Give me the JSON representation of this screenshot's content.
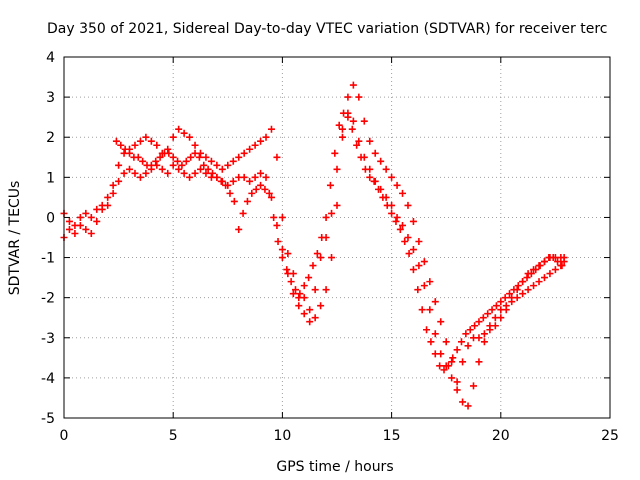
{
  "chart_data": {
    "type": "scatter",
    "title": "Day 350 of 2021, Sidereal Day-to-day VTEC variation (SDTVAR) for receiver terc",
    "xlabel": "GPS time / hours",
    "ylabel": "SDTVAR / TECUs",
    "xlim": [
      0,
      25
    ],
    "ylim": [
      -5,
      4
    ],
    "xticks": [
      0,
      5,
      10,
      15,
      20,
      25
    ],
    "yticks": [
      -5,
      -4,
      -3,
      -2,
      -1,
      0,
      1,
      2,
      3,
      4
    ],
    "grid": true,
    "marker": "plus",
    "color": "#ff0000",
    "series": [
      {
        "x": [
          0.0,
          0.25,
          0.5,
          0.75,
          1.0,
          1.25,
          1.5,
          1.75,
          2.0,
          2.25,
          2.5,
          2.75,
          3.0,
          3.25,
          3.5,
          3.75,
          4.0,
          4.25,
          4.5,
          4.75,
          5.0,
          5.25,
          5.5,
          5.75,
          6.0,
          6.25,
          6.5,
          6.75,
          7.0,
          7.25,
          7.5,
          7.75,
          8.0,
          8.25,
          8.5,
          8.75,
          9.0,
          9.25,
          9.5,
          9.75,
          10.0,
          10.25,
          10.5,
          10.75,
          11.0,
          11.25,
          11.5,
          11.75,
          12.0,
          12.25,
          12.5,
          12.75,
          13.0,
          13.25,
          13.5,
          13.75,
          14.0,
          14.25,
          14.5,
          14.75,
          15.0,
          15.25,
          15.5,
          15.75,
          16.0,
          16.25,
          16.5,
          16.75,
          17.0,
          17.25,
          17.5,
          17.75,
          18.0,
          18.25,
          18.5,
          18.75,
          19.0,
          19.25,
          19.5,
          19.75,
          20.0,
          20.25,
          20.5,
          20.75,
          21.0,
          21.25,
          21.5,
          21.75,
          22.0,
          22.25,
          22.5,
          22.75,
          22.9
        ],
        "y": [
          -0.5,
          -0.3,
          -0.4,
          -0.2,
          -0.3,
          -0.4,
          -0.1,
          0.2,
          0.3,
          0.6,
          0.9,
          1.1,
          1.2,
          1.1,
          1.0,
          1.1,
          1.2,
          1.3,
          1.2,
          1.1,
          1.3,
          1.2,
          1.1,
          1.0,
          1.1,
          1.2,
          1.1,
          1.0,
          1.0,
          0.9,
          0.8,
          0.9,
          1.0,
          1.0,
          0.9,
          1.0,
          1.1,
          1.0,
          0.5,
          -0.2,
          -0.8,
          -1.4,
          -1.9,
          -2.2,
          -2.0,
          -2.3,
          -1.8,
          -1.0,
          -0.5,
          0.1,
          1.2,
          2.2,
          2.6,
          2.4,
          1.9,
          1.5,
          1.2,
          0.9,
          0.7,
          0.5,
          0.3,
          0.0,
          -0.2,
          -0.5,
          -0.8,
          -1.2,
          -1.7,
          -2.3,
          -2.9,
          -3.4,
          -3.7,
          -4.0,
          -4.1,
          -3.6,
          -3.2,
          -3.0,
          -3.0,
          -2.9,
          -2.8,
          -2.7,
          -2.5,
          -2.3,
          -2.0,
          -1.8,
          -1.6,
          -1.4,
          -1.3,
          -1.2,
          -1.1,
          -1.0,
          -1.0,
          -1.0,
          -1.0
        ]
      },
      {
        "x": [
          0.0,
          0.25,
          0.5,
          0.75,
          1.0,
          1.25,
          1.5,
          1.75,
          2.0,
          2.25,
          2.5,
          2.75,
          3.0,
          3.25,
          3.5,
          3.75,
          4.0,
          4.25,
          4.5,
          4.75,
          5.0,
          5.25,
          5.5,
          5.75,
          6.0,
          6.25,
          6.5,
          6.75,
          7.0,
          7.25,
          7.5,
          7.75,
          8.0,
          8.25,
          8.5,
          8.75,
          9.0,
          9.25,
          9.5,
          9.75,
          10.0,
          10.25,
          10.5,
          10.75,
          11.0,
          11.25,
          11.5,
          11.75,
          12.0,
          12.25,
          12.5,
          12.75,
          13.0,
          13.25,
          13.5,
          13.75,
          14.0,
          14.25,
          14.5,
          14.75,
          15.0,
          15.25,
          15.5,
          15.75,
          16.0,
          16.25,
          16.5,
          16.75,
          17.0,
          17.25,
          17.5,
          17.75,
          18.0,
          18.25,
          18.5,
          18.75,
          19.0,
          19.25,
          19.5,
          19.75,
          20.0,
          20.25,
          20.5,
          20.75,
          21.0,
          21.25,
          21.5,
          21.75,
          22.0,
          22.25,
          22.5,
          22.75,
          22.9
        ],
        "y": [
          0.1,
          -0.1,
          -0.2,
          0.0,
          0.1,
          0.0,
          0.2,
          0.3,
          0.5,
          0.8,
          1.3,
          1.6,
          1.7,
          1.8,
          1.9,
          2.0,
          1.9,
          1.8,
          1.6,
          1.7,
          2.0,
          2.2,
          2.1,
          2.0,
          1.8,
          1.6,
          1.5,
          1.4,
          1.3,
          1.2,
          1.3,
          1.4,
          1.5,
          1.6,
          1.7,
          1.8,
          1.9,
          2.0,
          2.2,
          1.5,
          0.0,
          -0.9,
          -1.4,
          -2.0,
          -2.4,
          -2.6,
          -2.5,
          -2.2,
          -1.8,
          -1.0,
          0.3,
          2.0,
          3.0,
          3.3,
          3.0,
          2.4,
          1.9,
          1.6,
          1.4,
          1.2,
          1.0,
          0.8,
          0.6,
          0.3,
          -0.1,
          -0.6,
          -1.1,
          -1.6,
          -2.1,
          -2.6,
          -3.1,
          -3.6,
          -4.3,
          -4.6,
          -4.7,
          -4.2,
          -3.6,
          -3.1,
          -2.7,
          -2.5,
          -2.3,
          -2.2,
          -2.1,
          -2.0,
          -1.9,
          -1.8,
          -1.7,
          -1.6,
          -1.5,
          -1.4,
          -1.3,
          -1.2,
          -1.1
        ]
      },
      {
        "x": [
          2.4,
          2.6,
          2.8,
          3.0,
          3.2,
          3.4,
          3.6,
          3.8,
          4.0,
          4.2,
          4.4,
          4.6,
          4.8,
          5.0,
          5.2,
          5.4,
          5.6,
          5.8,
          6.0,
          6.2,
          6.4,
          6.6,
          6.8,
          7.0,
          7.2,
          7.4,
          7.6,
          7.8,
          8.0,
          8.2,
          8.4,
          8.6,
          8.8,
          9.0,
          9.2,
          9.4,
          9.6,
          9.8,
          10.0,
          10.2,
          10.4,
          10.6,
          10.8,
          11.0,
          11.2,
          11.4,
          11.6,
          11.8,
          12.0,
          12.2,
          12.4,
          12.6,
          12.8,
          13.0,
          13.2,
          13.4,
          13.6,
          13.8,
          14.0,
          14.2,
          14.4,
          14.6,
          14.8,
          15.0,
          15.2,
          15.4,
          15.6,
          15.8,
          16.0,
          16.2,
          16.4,
          16.6,
          16.8,
          17.0,
          17.2,
          17.4,
          17.6,
          17.8,
          18.0,
          18.2,
          18.4,
          18.6,
          18.8,
          19.0,
          19.2,
          19.4,
          19.6,
          19.8,
          20.0,
          20.2,
          20.4,
          20.6,
          20.8,
          21.0,
          21.2,
          21.4,
          21.6,
          21.8,
          22.0,
          22.2,
          22.4,
          22.6,
          22.8
        ],
        "y": [
          1.9,
          1.8,
          1.7,
          1.6,
          1.5,
          1.5,
          1.4,
          1.3,
          1.3,
          1.4,
          1.5,
          1.6,
          1.6,
          1.5,
          1.4,
          1.3,
          1.4,
          1.5,
          1.6,
          1.5,
          1.3,
          1.2,
          1.1,
          1.0,
          0.9,
          0.8,
          0.6,
          0.4,
          -0.3,
          0.1,
          0.4,
          0.6,
          0.7,
          0.8,
          0.7,
          0.6,
          0.0,
          -0.6,
          -1.0,
          -1.3,
          -1.6,
          -1.8,
          -1.9,
          -1.7,
          -1.5,
          -1.2,
          -0.9,
          -0.5,
          0.0,
          0.8,
          1.6,
          2.3,
          2.6,
          2.5,
          2.2,
          1.8,
          1.5,
          1.2,
          1.0,
          0.9,
          0.7,
          0.5,
          0.3,
          0.1,
          -0.1,
          -0.3,
          -0.6,
          -0.9,
          -1.3,
          -1.8,
          -2.3,
          -2.8,
          -3.1,
          -3.4,
          -3.7,
          -3.8,
          -3.7,
          -3.5,
          -3.3,
          -3.1,
          -2.9,
          -2.8,
          -2.7,
          -2.6,
          -2.5,
          -2.4,
          -2.3,
          -2.2,
          -2.1,
          -2.0,
          -1.9,
          -1.8,
          -1.7,
          -1.6,
          -1.5,
          -1.4,
          -1.3,
          -1.2,
          -1.1,
          -1.0,
          -1.0,
          -1.1,
          -1.2
        ]
      }
    ]
  }
}
